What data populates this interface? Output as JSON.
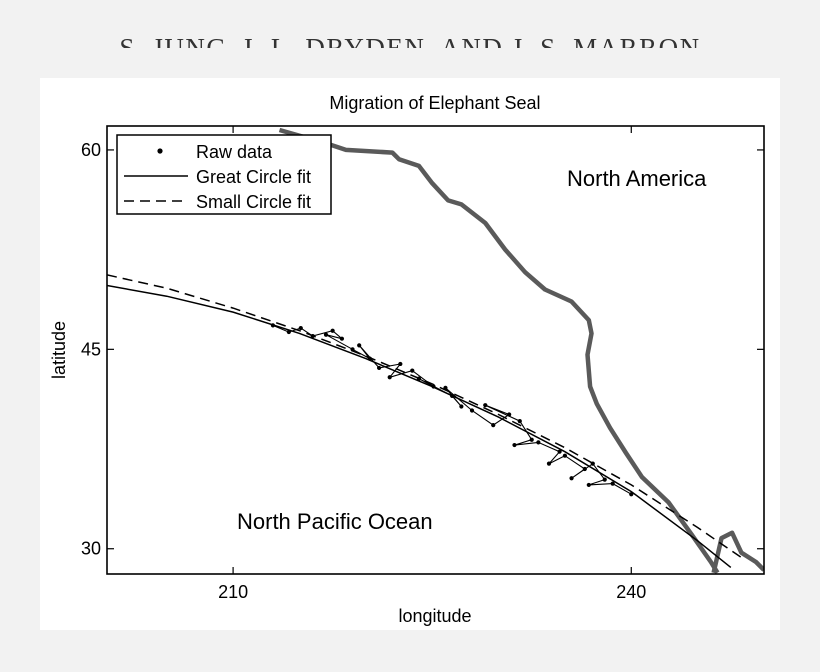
{
  "header": {
    "text": "S. JUNG, I. L. DRYDEN, AND J. S. MARRON"
  },
  "chart_data": {
    "type": "line",
    "title": "Migration of Elephant Seal",
    "xlabel": "longitude",
    "ylabel": "latitude",
    "xlim": [
      200.5,
      250
    ],
    "ylim": [
      28.1,
      61.8
    ],
    "x_ticks": [
      210,
      240
    ],
    "y_ticks": [
      30,
      45,
      60
    ],
    "x_tick_labels": [
      "210",
      "240"
    ],
    "y_tick_labels": [
      "30",
      "45",
      "60"
    ],
    "grid": false,
    "legend": {
      "position": "top-left",
      "entries": [
        "Raw data",
        "Great Circle fit",
        "Small Circle fit"
      ]
    },
    "annotations": [
      "North America",
      "North Pacific Ocean"
    ],
    "series": [
      {
        "name": "Raw data",
        "style": "dots-connected",
        "x": [
          213.0,
          214.2,
          215.1,
          216.0,
          217.5,
          218.2,
          217.0,
          219.0,
          220.3,
          219.5,
          221.0,
          222.6,
          221.8,
          223.5,
          225.1,
          224.0,
          226.5,
          227.2,
          226.0,
          228.0,
          229.6,
          230.8,
          229.0,
          231.6,
          232.5,
          231.2,
          233.0,
          234.6,
          233.8,
          235.0,
          236.5,
          235.5,
          237.1,
          238.0,
          236.8,
          238.6,
          240.0
        ],
        "y": [
          46.8,
          46.3,
          46.6,
          46.0,
          46.4,
          45.8,
          46.1,
          45.0,
          44.3,
          45.3,
          43.6,
          43.9,
          42.9,
          43.4,
          42.2,
          42.8,
          41.5,
          40.7,
          42.1,
          40.4,
          39.3,
          40.1,
          40.8,
          39.6,
          38.2,
          37.8,
          38.0,
          37.3,
          36.4,
          37.0,
          36.0,
          35.3,
          36.4,
          35.2,
          34.8,
          34.9,
          34.1
        ]
      },
      {
        "name": "Great Circle fit",
        "style": "solid",
        "x": [
          200.5,
          205,
          210,
          215,
          220,
          225,
          230,
          235,
          240,
          245,
          247.5
        ],
        "y": [
          49.8,
          49.0,
          47.8,
          46.2,
          44.3,
          42.2,
          39.9,
          37.3,
          34.3,
          30.6,
          28.6
        ]
      },
      {
        "name": "Small Circle fit",
        "style": "dashed",
        "x": [
          200.5,
          205,
          210,
          215,
          220,
          225,
          230,
          235,
          240,
          245,
          248.5
        ],
        "y": [
          50.6,
          49.6,
          48.1,
          46.4,
          44.5,
          42.4,
          40.1,
          37.6,
          34.8,
          31.6,
          29.2
        ]
      },
      {
        "name": "coastline",
        "style": "thick-gray",
        "x": [
          213.5,
          217.0,
          218.5,
          222.0,
          222.5,
          224.0,
          225.0,
          226.2,
          227.2,
          229.0,
          230.5,
          232.0,
          233.5,
          235.5,
          236.8,
          237.0,
          236.7,
          236.9,
          237.4,
          238.4,
          239.6,
          240.8,
          242.8,
          244.6,
          246.0,
          246.5
        ],
        "y": [
          61.5,
          60.5,
          60.0,
          59.8,
          59.3,
          58.8,
          57.5,
          56.2,
          55.9,
          54.5,
          52.5,
          50.8,
          49.5,
          48.6,
          47.2,
          46.2,
          44.6,
          42.2,
          40.9,
          39.1,
          37.2,
          35.4,
          33.5,
          31.0,
          29.0,
          28.2
        ]
      },
      {
        "name": "island",
        "style": "thick-gray",
        "x": [
          246.2,
          246.8,
          247.6,
          248.3,
          249.4,
          250.0
        ],
        "y": [
          28.2,
          30.8,
          31.2,
          29.7,
          29.0,
          28.4
        ]
      }
    ]
  }
}
